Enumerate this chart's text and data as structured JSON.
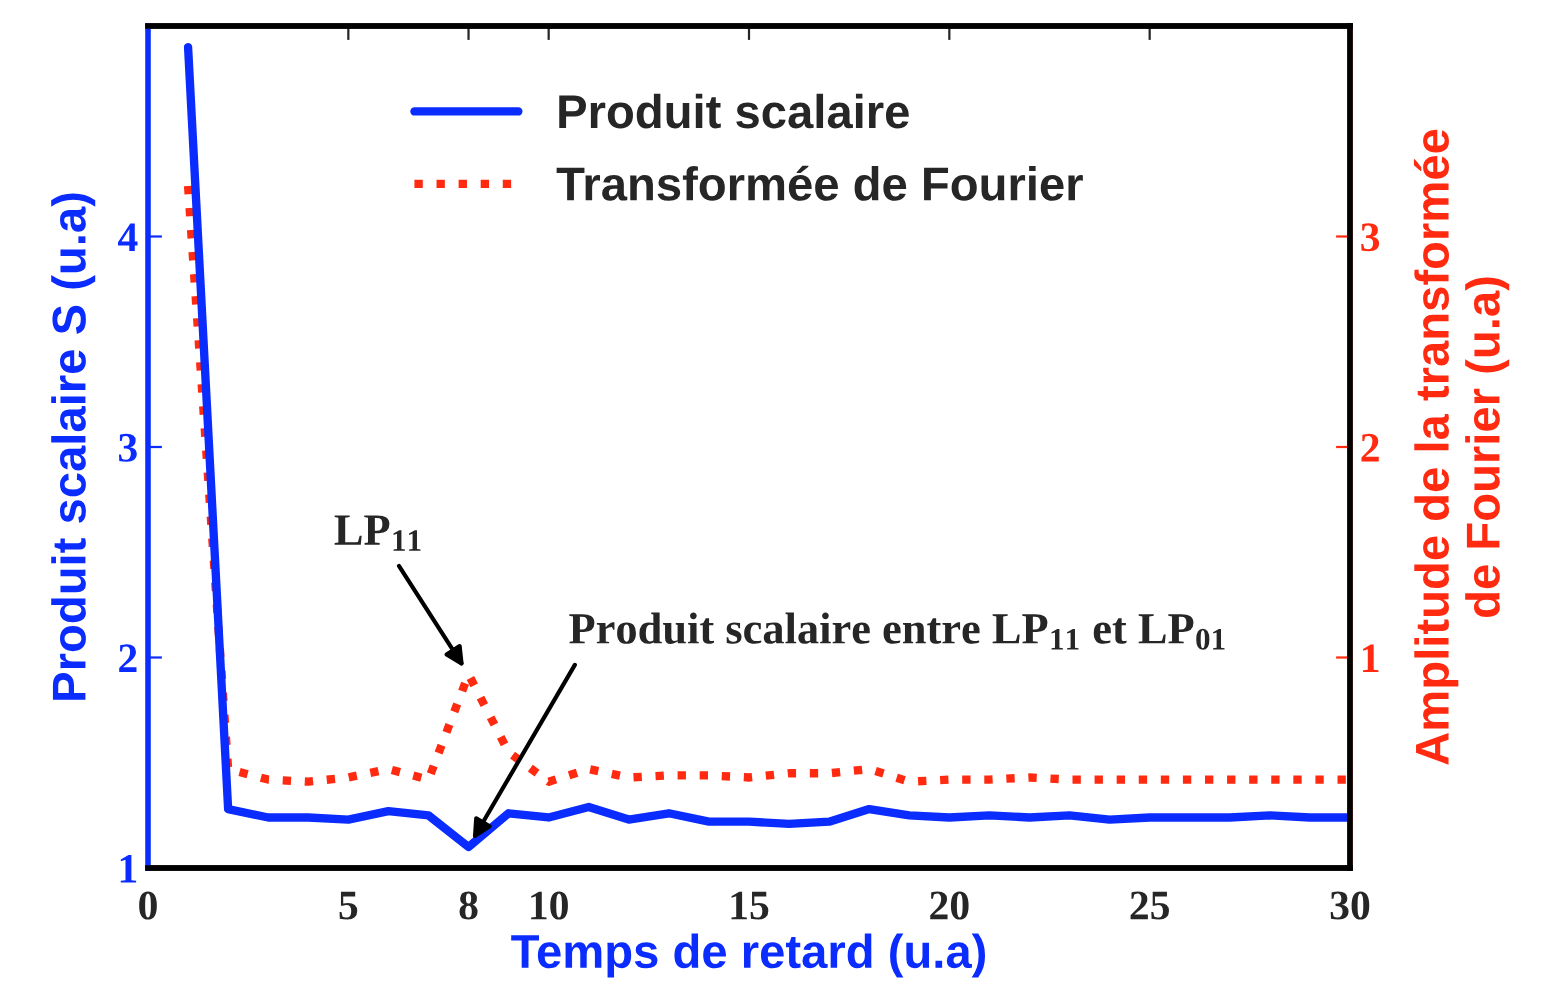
{
  "chart_data": {
    "type": "line",
    "xlabel": "Temps de retard (u.a)",
    "ylabel": "Produit scalaire S (u.a)",
    "y2label": "Amplitude de la transformée\nde Fourier (u.a)",
    "x": [
      1,
      2,
      3,
      4,
      5,
      6,
      7,
      8,
      9,
      10,
      11,
      12,
      13,
      14,
      15,
      16,
      17,
      18,
      19,
      20,
      21,
      22,
      23,
      24,
      25,
      26,
      27,
      28,
      29,
      30
    ],
    "series": [
      {
        "name": "Produit scalaire",
        "color": "#0a2cff",
        "line_style": "solid",
        "values": [
          4.9,
          1.28,
          1.24,
          1.24,
          1.23,
          1.27,
          1.25,
          1.1,
          1.26,
          1.24,
          1.29,
          1.23,
          1.26,
          1.22,
          1.22,
          1.21,
          1.22,
          1.28,
          1.25,
          1.24,
          1.25,
          1.24,
          1.25,
          1.23,
          1.24,
          1.24,
          1.24,
          1.25,
          1.24,
          1.24
        ]
      },
      {
        "name": "Transformée de Fourier",
        "color": "#ff2a10",
        "line_style": "dotted",
        "axis": "y2",
        "values": [
          3.24,
          0.47,
          0.42,
          0.41,
          0.43,
          0.47,
          0.42,
          0.92,
          0.55,
          0.41,
          0.47,
          0.43,
          0.44,
          0.44,
          0.43,
          0.45,
          0.45,
          0.47,
          0.41,
          0.42,
          0.42,
          0.43,
          0.42,
          0.42,
          0.42,
          0.42,
          0.42,
          0.42,
          0.42,
          0.42
        ]
      }
    ],
    "xlim": [
      0,
      30
    ],
    "xticks": [
      0,
      5,
      8,
      10,
      15,
      20,
      25,
      30
    ],
    "ylim": [
      1,
      5
    ],
    "yticks": [
      1,
      2,
      3,
      4
    ],
    "y2lim": [
      0,
      4
    ],
    "y2ticks": [
      1,
      2,
      3
    ],
    "annotations": [
      {
        "text": "LP$_{11}$",
        "x": 8,
        "y": 1.92
      },
      {
        "text": "Produit scalaire entre LP$_{11}$ et LP$_{01}$",
        "x": 8,
        "y": 1.1
      }
    ],
    "legend": "top",
    "grid": false
  }
}
